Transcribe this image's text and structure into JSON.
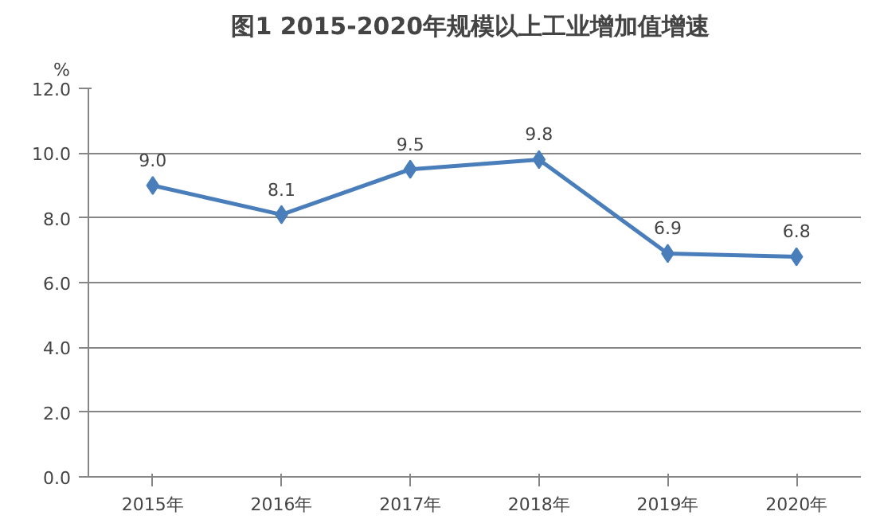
{
  "chart_data": {
    "type": "line",
    "title": "图1  2015-2020年规模以上工业增加值增速",
    "ylabel": "%",
    "categories": [
      "2015年",
      "2016年",
      "2017年",
      "2018年",
      "2019年",
      "2020年"
    ],
    "series": [
      {
        "color": "#4a7ebb",
        "values": [
          9.0,
          8.1,
          9.5,
          9.8,
          6.9,
          6.8
        ],
        "value_labels": [
          "9.0",
          "8.1",
          "9.5",
          "9.8",
          "6.9",
          "6.8"
        ]
      }
    ],
    "ylim": [
      0,
      12
    ],
    "yticks": [
      {
        "value": 0,
        "label": "0.0"
      },
      {
        "value": 2,
        "label": "2.0"
      },
      {
        "value": 4,
        "label": "4.0"
      },
      {
        "value": 6,
        "label": "6.0"
      },
      {
        "value": 8,
        "label": "8.0"
      },
      {
        "value": 10,
        "label": "10.0"
      },
      {
        "value": 12,
        "label": "12.0"
      }
    ],
    "grid": "y",
    "marker": "diamond",
    "line_style": "solid"
  }
}
